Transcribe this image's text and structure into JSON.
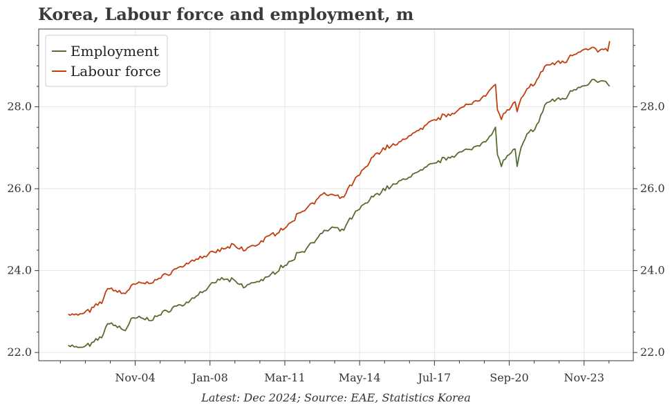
{
  "title": "Korea, Labour force and employment, m",
  "footer": "Latest: Dec 2024; Source: EAE, Statistics Korea",
  "chart_data": {
    "type": "line",
    "title": "Korea, Labour force and employment, m",
    "xlabel": "",
    "ylabel": "",
    "x_start": "2002-01",
    "x_end": "2024-12",
    "xlim": [
      "2000-10",
      "2025-12"
    ],
    "ylim": [
      21.8,
      29.9
    ],
    "y_ticks": [
      22.0,
      24.0,
      26.0,
      28.0
    ],
    "y_tick_labels": [
      "22.0",
      "24.0",
      "26.0",
      "28.0"
    ],
    "x_tick_labels": [
      "Nov-04",
      "Jan-08",
      "Mar-11",
      "May-14",
      "Jul-17",
      "Sep-20",
      "Nov-23"
    ],
    "x_ticks": [
      "2004-11",
      "2008-01",
      "2011-03",
      "2014-05",
      "2017-07",
      "2020-09",
      "2023-11"
    ],
    "grid": true,
    "legend_position": "top-left",
    "series": [
      {
        "name": "Employment",
        "color": "#556b2f",
        "knots": [
          [
            "2002-01",
            22.2
          ],
          [
            "2002-06",
            22.1
          ],
          [
            "2003-01",
            22.2
          ],
          [
            "2003-06",
            22.4
          ],
          [
            "2003-10",
            22.75
          ],
          [
            "2004-01",
            22.65
          ],
          [
            "2004-06",
            22.55
          ],
          [
            "2004-09",
            22.8
          ],
          [
            "2005-01",
            22.85
          ],
          [
            "2005-06",
            22.8
          ],
          [
            "2006-01",
            22.95
          ],
          [
            "2006-06",
            23.1
          ],
          [
            "2007-01",
            23.2
          ],
          [
            "2007-06",
            23.4
          ],
          [
            "2008-01",
            23.6
          ],
          [
            "2008-06",
            23.8
          ],
          [
            "2009-01",
            23.75
          ],
          [
            "2009-06",
            23.6
          ],
          [
            "2010-01",
            23.75
          ],
          [
            "2010-06",
            23.8
          ],
          [
            "2011-01",
            24.1
          ],
          [
            "2011-06",
            24.2
          ],
          [
            "2011-10",
            24.45
          ],
          [
            "2012-01",
            24.5
          ],
          [
            "2012-06",
            24.75
          ],
          [
            "2012-10",
            24.9
          ],
          [
            "2013-03",
            25.05
          ],
          [
            "2013-08",
            24.95
          ],
          [
            "2014-01",
            25.3
          ],
          [
            "2014-06",
            25.55
          ],
          [
            "2015-01",
            25.85
          ],
          [
            "2015-06",
            26.0
          ],
          [
            "2016-01",
            26.15
          ],
          [
            "2016-06",
            26.3
          ],
          [
            "2017-01",
            26.45
          ],
          [
            "2017-06",
            26.6
          ],
          [
            "2018-01",
            26.75
          ],
          [
            "2018-06",
            26.85
          ],
          [
            "2019-01",
            26.95
          ],
          [
            "2019-06",
            27.1
          ],
          [
            "2019-12",
            27.3
          ],
          [
            "2020-02",
            27.5
          ],
          [
            "2020-03",
            26.8
          ],
          [
            "2020-05",
            26.6
          ],
          [
            "2020-09",
            26.85
          ],
          [
            "2020-12",
            26.95
          ],
          [
            "2021-01",
            26.5
          ],
          [
            "2021-03",
            27.0
          ],
          [
            "2021-06",
            27.3
          ],
          [
            "2021-12",
            27.6
          ],
          [
            "2022-03",
            28.05
          ],
          [
            "2022-06",
            28.15
          ],
          [
            "2023-01",
            28.2
          ],
          [
            "2023-06",
            28.45
          ],
          [
            "2023-12",
            28.55
          ],
          [
            "2024-03",
            28.65
          ],
          [
            "2024-06",
            28.6
          ],
          [
            "2024-11",
            28.6
          ],
          [
            "2024-12",
            28.45
          ]
        ]
      },
      {
        "name": "Labour force",
        "color": "#c23b0d",
        "knots": [
          [
            "2002-01",
            22.95
          ],
          [
            "2002-06",
            22.9
          ],
          [
            "2003-01",
            23.05
          ],
          [
            "2003-06",
            23.25
          ],
          [
            "2003-10",
            23.6
          ],
          [
            "2004-01",
            23.5
          ],
          [
            "2004-06",
            23.45
          ],
          [
            "2004-09",
            23.6
          ],
          [
            "2005-01",
            23.7
          ],
          [
            "2005-06",
            23.7
          ],
          [
            "2006-01",
            23.85
          ],
          [
            "2006-06",
            24.0
          ],
          [
            "2007-01",
            24.15
          ],
          [
            "2007-06",
            24.3
          ],
          [
            "2008-01",
            24.4
          ],
          [
            "2008-06",
            24.5
          ],
          [
            "2009-01",
            24.6
          ],
          [
            "2009-06",
            24.5
          ],
          [
            "2010-01",
            24.65
          ],
          [
            "2010-06",
            24.8
          ],
          [
            "2011-01",
            25.0
          ],
          [
            "2011-06",
            25.15
          ],
          [
            "2011-10",
            25.4
          ],
          [
            "2012-01",
            25.5
          ],
          [
            "2012-06",
            25.7
          ],
          [
            "2012-10",
            25.85
          ],
          [
            "2013-03",
            25.85
          ],
          [
            "2013-08",
            25.75
          ],
          [
            "2014-01",
            26.1
          ],
          [
            "2014-06",
            26.4
          ],
          [
            "2015-01",
            26.85
          ],
          [
            "2015-06",
            27.0
          ],
          [
            "2016-01",
            27.1
          ],
          [
            "2016-06",
            27.3
          ],
          [
            "2017-01",
            27.45
          ],
          [
            "2017-06",
            27.65
          ],
          [
            "2018-01",
            27.8
          ],
          [
            "2018-06",
            27.9
          ],
          [
            "2019-01",
            28.05
          ],
          [
            "2019-06",
            28.2
          ],
          [
            "2019-12",
            28.45
          ],
          [
            "2020-02",
            28.55
          ],
          [
            "2020-03",
            27.9
          ],
          [
            "2020-05",
            27.75
          ],
          [
            "2020-09",
            27.95
          ],
          [
            "2020-12",
            28.1
          ],
          [
            "2021-01",
            27.85
          ],
          [
            "2021-03",
            28.2
          ],
          [
            "2021-06",
            28.4
          ],
          [
            "2021-12",
            28.7
          ],
          [
            "2022-03",
            29.0
          ],
          [
            "2022-06",
            29.05
          ],
          [
            "2023-01",
            29.1
          ],
          [
            "2023-06",
            29.3
          ],
          [
            "2023-12",
            29.45
          ],
          [
            "2024-03",
            29.45
          ],
          [
            "2024-06",
            29.35
          ],
          [
            "2024-11",
            29.4
          ],
          [
            "2024-12",
            29.55
          ]
        ]
      }
    ]
  }
}
